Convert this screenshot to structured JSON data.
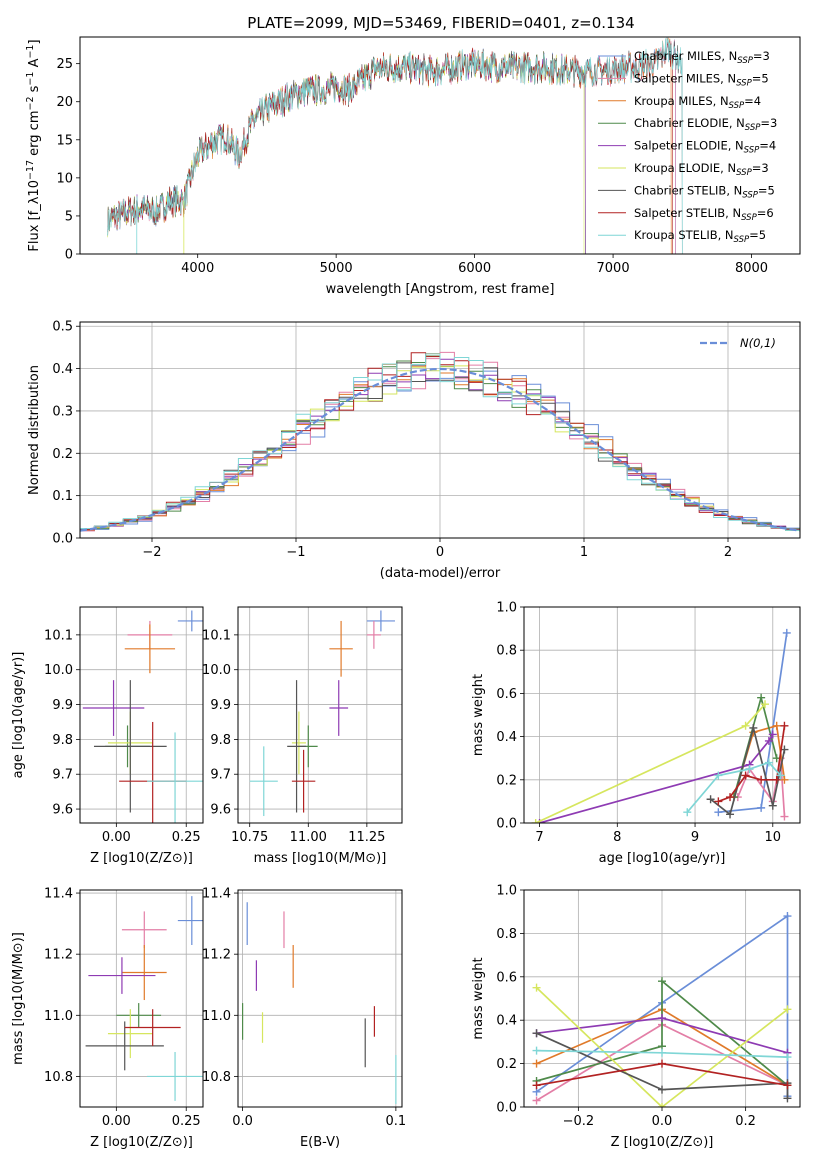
{
  "figure": {
    "title": "PLATE=2099, MJD=53469, FIBERID=0401, z=0.134"
  },
  "model_colors": [
    "#6a8ed8",
    "#e37ea6",
    "#e07a2a",
    "#4f8a4a",
    "#8e3bb3",
    "#d6e65e",
    "#555555",
    "#b22222",
    "#7fd6d6"
  ],
  "model_labels": [
    "Chabrier MILES, N_SSP=3",
    "Salpeter MILES, N_SSP=5",
    "Kroupa MILES, N_SSP=4",
    "Chabrier ELODIE, N_SSP=3",
    "Salpeter ELODIE, N_SSP=4",
    "Kroupa ELODIE, N_SSP=3",
    "Chabrier STELIB, N_SSP=5",
    "Salpeter STELIB, N_SSP=6",
    "Kroupa STELIB, N_SSP=5"
  ],
  "chart_data": [
    {
      "id": "spectrum",
      "type": "line",
      "xlabel": "wavelength [Angstrom, rest frame]",
      "ylabel": "Flux [f_λ10^-17 erg cm^-2 s^-1 A^-1]",
      "xlim": [
        3150,
        8350
      ],
      "ylim": [
        0,
        28.5
      ],
      "xticks": [
        4000,
        5000,
        6000,
        7000,
        8000
      ],
      "yticks": [
        0,
        5,
        10,
        15,
        20,
        25
      ],
      "grid": false,
      "legend": "right",
      "continuum": {
        "x": [
          3350,
          3500,
          3600,
          3700,
          3800,
          3900,
          3950,
          4000,
          4100,
          4200,
          4300,
          4400,
          4500,
          4600,
          4700,
          4800,
          4900,
          5000,
          5100,
          5200,
          5300,
          5500,
          5700,
          6000,
          6200,
          6500,
          6700,
          6900,
          7100,
          7300,
          7400,
          7500
        ],
        "y": [
          4.5,
          5.5,
          6.0,
          5.5,
          7.0,
          7.0,
          10.0,
          13.0,
          14.5,
          15.5,
          13.0,
          17.5,
          19.0,
          20.0,
          21.0,
          21.5,
          21.5,
          22.0,
          21.5,
          23.0,
          24.5,
          24.5,
          24.0,
          25.0,
          24.5,
          24.5,
          24.0,
          24.0,
          24.5,
          25.0,
          27.0,
          25.0
        ]
      },
      "series": [
        {
          "name": "Chabrier MILES, N_SSP=3",
          "xmin": 3350,
          "xmax": 7450
        },
        {
          "name": "Salpeter MILES, N_SSP=5",
          "xmin": 3350,
          "xmax": 7450
        },
        {
          "name": "Kroupa MILES, N_SSP=4",
          "xmin": 3350,
          "xmax": 7420
        },
        {
          "name": "Chabrier ELODIE, N_SSP=3",
          "xmin": 3350,
          "xmax": 6800
        },
        {
          "name": "Salpeter ELODIE, N_SSP=4",
          "xmin": 3350,
          "xmax": 6800
        },
        {
          "name": "Kroupa ELODIE, N_SSP=3",
          "xmin": 3350,
          "xmax": 6790
        },
        {
          "name": "Chabrier STELIB, N_SSP=5",
          "xmin": 3350,
          "xmax": 7500
        },
        {
          "name": "Salpeter STELIB, N_SSP=6",
          "xmin": 3350,
          "xmax": 7430
        },
        {
          "name": "Kroupa STELIB, N_SSP=5",
          "xmin": 3350,
          "xmax": 7500
        }
      ]
    },
    {
      "id": "residuals",
      "type": "histogram",
      "xlabel": "(data-model)/error",
      "ylabel": "Normed distribution",
      "xlim": [
        -2.5,
        2.5
      ],
      "ylim": [
        0,
        0.51
      ],
      "xticks": [
        -2,
        -1,
        0,
        1,
        2
      ],
      "yticks": [
        0.0,
        0.1,
        0.2,
        0.3,
        0.4,
        0.5
      ],
      "grid": true,
      "legend": "top-right",
      "legend_label": "N(0,1)",
      "bin_width": 0.1,
      "series": [
        {
          "name": "Chabrier MILES, N_SSP=3"
        },
        {
          "name": "Salpeter MILES, N_SSP=5"
        },
        {
          "name": "Kroupa MILES, N_SSP=4"
        },
        {
          "name": "Chabrier ELODIE, N_SSP=3"
        },
        {
          "name": "Salpeter ELODIE, N_SSP=4"
        },
        {
          "name": "Kroupa ELODIE, N_SSP=3"
        },
        {
          "name": "Chabrier STELIB, N_SSP=5"
        },
        {
          "name": "Salpeter STELIB, N_SSP=6"
        },
        {
          "name": "Kroupa STELIB, N_SSP=5"
        }
      ]
    },
    {
      "id": "age_vs_Z",
      "type": "scatter",
      "xlabel": "Z [log10(Z/Z⊙)]",
      "ylabel": "age  [log10(age/yr)]",
      "xlim": [
        -0.13,
        0.31
      ],
      "ylim": [
        9.56,
        10.18
      ],
      "xticks": [
        0.0,
        0.25
      ],
      "yticks": [
        9.6,
        9.7,
        9.8,
        9.9,
        10.0,
        10.1
      ],
      "grid": true,
      "points": [
        {
          "x": 0.27,
          "y": 10.14,
          "xerr": 0.05,
          "yerr": 0.03
        },
        {
          "x": 0.12,
          "y": 10.1,
          "xerr": 0.08,
          "yerr": 0.04
        },
        {
          "x": 0.12,
          "y": 10.06,
          "xerr": 0.09,
          "yerr": 0.07
        },
        {
          "x": 0.04,
          "y": 9.78,
          "xerr": 0.08,
          "yerr": 0.06
        },
        {
          "x": -0.01,
          "y": 9.89,
          "xerr": 0.11,
          "yerr": 0.08
        },
        {
          "x": 0.05,
          "y": 9.79,
          "xerr": 0.08,
          "yerr": 0.09
        },
        {
          "x": 0.05,
          "y": 9.78,
          "xerr": 0.13,
          "yerr": 0.19
        },
        {
          "x": 0.13,
          "y": 9.68,
          "xerr": 0.12,
          "yerr": 0.17
        },
        {
          "x": 0.21,
          "y": 9.68,
          "xerr": 0.1,
          "yerr": 0.14
        }
      ]
    },
    {
      "id": "age_vs_mass",
      "type": "scatter",
      "xlabel": "mass [log10(M/M⊙)]",
      "ylabel": "",
      "xlim": [
        10.7,
        11.4
      ],
      "ylim": [
        9.56,
        10.18
      ],
      "xticks": [
        10.75,
        11.0,
        11.25
      ],
      "yticks": [
        9.6,
        9.7,
        9.8,
        9.9,
        10.0,
        10.1
      ],
      "grid": true,
      "points": [
        {
          "x": 11.31,
          "y": 10.14,
          "xerr": 0.06,
          "yerr": 0.03
        },
        {
          "x": 11.28,
          "y": 10.1,
          "xerr": 0.03,
          "yerr": 0.04
        },
        {
          "x": 11.14,
          "y": 10.06,
          "xerr": 0.05,
          "yerr": 0.08
        },
        {
          "x": 11.0,
          "y": 9.78,
          "xerr": 0.04,
          "yerr": 0.06
        },
        {
          "x": 11.13,
          "y": 9.89,
          "xerr": 0.04,
          "yerr": 0.08
        },
        {
          "x": 10.96,
          "y": 9.79,
          "xerr": 0.03,
          "yerr": 0.09
        },
        {
          "x": 10.95,
          "y": 9.78,
          "xerr": 0.04,
          "yerr": 0.19
        },
        {
          "x": 10.98,
          "y": 9.68,
          "xerr": 0.05,
          "yerr": 0.09
        },
        {
          "x": 10.81,
          "y": 9.68,
          "xerr": 0.06,
          "yerr": 0.1
        }
      ]
    },
    {
      "id": "weight_vs_age",
      "type": "line",
      "xlabel": "age  [log10(age/yr)]",
      "ylabel": "mass weight",
      "xlim": [
        6.8,
        10.35
      ],
      "ylim": [
        0,
        1.0
      ],
      "xticks": [
        7,
        8,
        9,
        10
      ],
      "yticks": [
        0.0,
        0.2,
        0.4,
        0.6,
        0.8,
        1.0
      ],
      "grid": true,
      "series": [
        {
          "name": "Chabrier MILES, N_SSP=3",
          "x": [
            9.3,
            9.85,
            10.18
          ],
          "y": [
            0.05,
            0.07,
            0.88
          ]
        },
        {
          "name": "Salpeter MILES, N_SSP=5",
          "x": [
            9.55,
            9.7,
            10.0,
            10.1,
            10.15
          ],
          "y": [
            0.12,
            0.25,
            0.1,
            0.3,
            0.03
          ]
        },
        {
          "name": "Kroupa MILES, N_SSP=4",
          "x": [
            9.5,
            9.75,
            10.05,
            10.15
          ],
          "y": [
            0.12,
            0.42,
            0.45,
            0.2
          ]
        },
        {
          "name": "Chabrier ELODIE, N_SSP=3",
          "x": [
            9.5,
            9.85,
            10.05
          ],
          "y": [
            0.12,
            0.58,
            0.3
          ]
        },
        {
          "name": "Salpeter ELODIE, N_SSP=4",
          "x": [
            7.0,
            9.7,
            9.95,
            10.0
          ],
          "y": [
            0.0,
            0.27,
            0.38,
            0.41
          ]
        },
        {
          "name": "Kroupa ELODIE, N_SSP=3",
          "x": [
            6.95,
            9.65,
            9.9
          ],
          "y": [
            0.0,
            0.45,
            0.55
          ]
        },
        {
          "name": "Chabrier STELIB, N_SSP=5",
          "x": [
            9.2,
            9.45,
            9.75,
            10.0,
            10.15
          ],
          "y": [
            0.11,
            0.04,
            0.44,
            0.08,
            0.34
          ]
        },
        {
          "name": "Salpeter STELIB, N_SSP=6",
          "x": [
            9.3,
            9.45,
            9.65,
            9.85,
            10.05,
            10.15
          ],
          "y": [
            0.1,
            0.12,
            0.22,
            0.2,
            0.2,
            0.45
          ]
        },
        {
          "name": "Kroupa STELIB, N_SSP=5",
          "x": [
            8.9,
            9.3,
            9.7,
            9.95,
            10.1
          ],
          "y": [
            0.05,
            0.22,
            0.25,
            0.28,
            0.22
          ]
        }
      ]
    },
    {
      "id": "mass_vs_Z",
      "type": "scatter",
      "xlabel": "Z [log10(Z/Z⊙)]",
      "ylabel": "mass [log10(M/M⊙)]",
      "xlim": [
        -0.13,
        0.31
      ],
      "ylim": [
        10.7,
        11.41
      ],
      "xticks": [
        0.0,
        0.25
      ],
      "yticks": [
        10.8,
        11.0,
        11.2,
        11.4
      ],
      "grid": true,
      "points": [
        {
          "x": 0.27,
          "y": 11.31,
          "xerr": 0.05,
          "yerr": 0.08
        },
        {
          "x": 0.1,
          "y": 11.28,
          "xerr": 0.08,
          "yerr": 0.06
        },
        {
          "x": 0.1,
          "y": 11.14,
          "xerr": 0.08,
          "yerr": 0.09
        },
        {
          "x": 0.08,
          "y": 11.0,
          "xerr": 0.08,
          "yerr": 0.04
        },
        {
          "x": 0.02,
          "y": 11.13,
          "xerr": 0.12,
          "yerr": 0.06
        },
        {
          "x": 0.05,
          "y": 10.94,
          "xerr": 0.08,
          "yerr": 0.08
        },
        {
          "x": 0.03,
          "y": 10.9,
          "xerr": 0.14,
          "yerr": 0.08
        },
        {
          "x": 0.13,
          "y": 10.96,
          "xerr": 0.1,
          "yerr": 0.06
        },
        {
          "x": 0.21,
          "y": 10.8,
          "xerr": 0.1,
          "yerr": 0.08
        }
      ]
    },
    {
      "id": "mass_vs_EBV",
      "type": "scatter",
      "xlabel": "E(B-V)",
      "ylabel": "",
      "xlim": [
        -0.003,
        0.104
      ],
      "ylim": [
        10.7,
        11.41
      ],
      "xticks": [
        0.0,
        0.1
      ],
      "yticks": [
        10.8,
        11.0,
        11.2,
        11.4
      ],
      "grid": true,
      "points": [
        {
          "x": 0.003,
          "y": 11.3,
          "xerr": 0.0,
          "yerr": 0.07
        },
        {
          "x": 0.027,
          "y": 11.28,
          "xerr": 0.0,
          "yerr": 0.06
        },
        {
          "x": 0.033,
          "y": 11.16,
          "xerr": 0.0,
          "yerr": 0.07
        },
        {
          "x": 0.0,
          "y": 10.98,
          "xerr": 0.0,
          "yerr": 0.06
        },
        {
          "x": 0.009,
          "y": 11.13,
          "xerr": 0.0,
          "yerr": 0.05
        },
        {
          "x": 0.013,
          "y": 10.96,
          "xerr": 0.0,
          "yerr": 0.05
        },
        {
          "x": 0.08,
          "y": 10.91,
          "xerr": 0.0,
          "yerr": 0.08
        },
        {
          "x": 0.086,
          "y": 10.98,
          "xerr": 0.0,
          "yerr": 0.05
        },
        {
          "x": 0.1,
          "y": 10.79,
          "xerr": 0.0,
          "yerr": 0.08
        }
      ]
    },
    {
      "id": "weight_vs_Z",
      "type": "line",
      "xlabel": "Z [log10(Z/Z⊙)]",
      "ylabel": "mass weight",
      "xlim": [
        -0.33,
        0.33
      ],
      "ylim": [
        0,
        1.0
      ],
      "xticks": [
        -0.2,
        0.0,
        0.2
      ],
      "yticks": [
        0.0,
        0.2,
        0.4,
        0.6,
        0.8,
        1.0
      ],
      "grid": true,
      "series": [
        {
          "name": "Chabrier MILES, N_SSP=3",
          "x": [
            -0.3,
            0.0,
            0.3,
            0.3
          ],
          "y": [
            0.07,
            0.48,
            0.88,
            0.05
          ]
        },
        {
          "name": "Salpeter MILES, N_SSP=5",
          "x": [
            -0.3,
            0.0,
            0.3
          ],
          "y": [
            0.03,
            0.38,
            0.1
          ]
        },
        {
          "name": "Kroupa MILES, N_SSP=4",
          "x": [
            -0.3,
            0.0,
            0.3
          ],
          "y": [
            0.2,
            0.45,
            0.1
          ]
        },
        {
          "name": "Chabrier ELODIE, N_SSP=3",
          "x": [
            -0.3,
            0.0,
            0.0,
            0.3
          ],
          "y": [
            0.12,
            0.28,
            0.58,
            0.1
          ]
        },
        {
          "name": "Salpeter ELODIE, N_SSP=4",
          "x": [
            -0.3,
            0.0,
            0.3
          ],
          "y": [
            0.34,
            0.41,
            0.25
          ]
        },
        {
          "name": "Kroupa ELODIE, N_SSP=3",
          "x": [
            -0.3,
            0.0,
            0.3
          ],
          "y": [
            0.55,
            0.0,
            0.45
          ]
        },
        {
          "name": "Chabrier STELIB, N_SSP=5",
          "x": [
            -0.3,
            0.0,
            0.3,
            0.3
          ],
          "y": [
            0.34,
            0.08,
            0.11,
            0.04
          ]
        },
        {
          "name": "Salpeter STELIB, N_SSP=6",
          "x": [
            -0.3,
            0.0,
            0.3
          ],
          "y": [
            0.1,
            0.2,
            0.1
          ]
        },
        {
          "name": "Kroupa STELIB, N_SSP=5",
          "x": [
            -0.3,
            0.0,
            0.3
          ],
          "y": [
            0.26,
            0.25,
            0.23
          ]
        }
      ]
    }
  ]
}
